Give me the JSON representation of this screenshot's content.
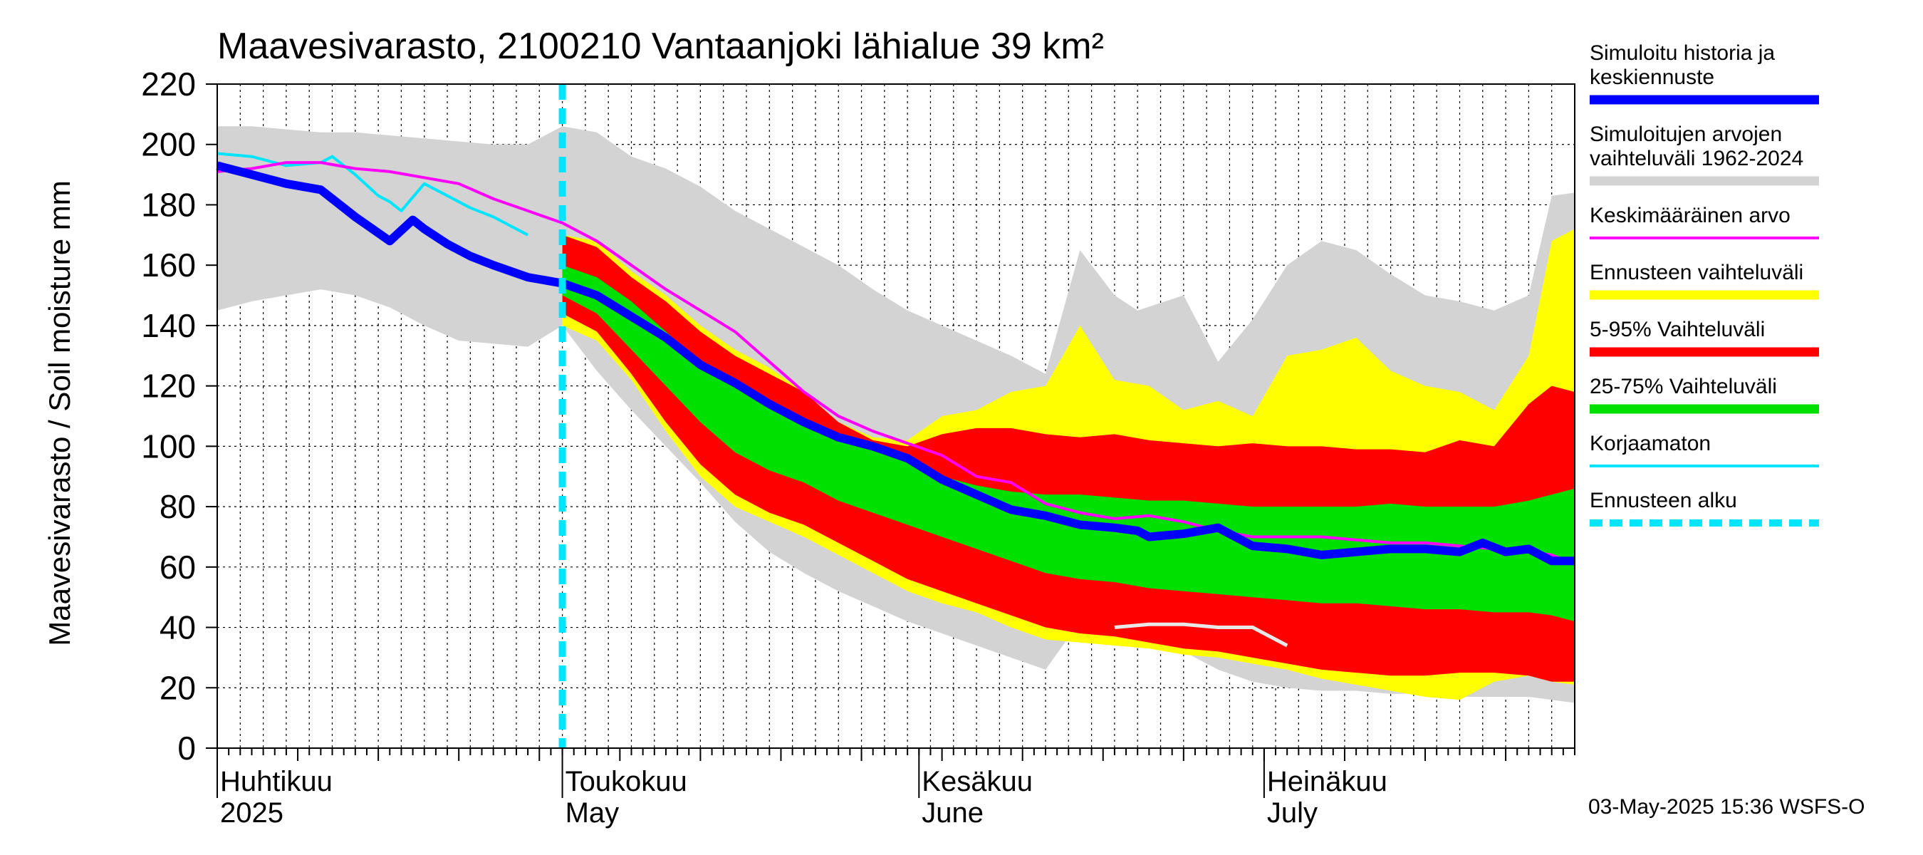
{
  "chart_data": {
    "type": "area",
    "title": "Maavesivarasto, 2100210 Vantaanjoki lähialue 39 km²",
    "ylabel": "Maavesivarasto / Soil moisture   mm",
    "ylim": [
      0,
      220
    ],
    "yticks": [
      0,
      20,
      40,
      60,
      80,
      100,
      120,
      140,
      160,
      180,
      200,
      220
    ],
    "xlim_days": [
      0,
      118
    ],
    "x_unit": "days from 2025-04-01",
    "forecast_start_day": 30,
    "month_labels": [
      {
        "fi": "Huhtikuu",
        "en": "2025",
        "day": 0
      },
      {
        "fi": "Toukokuu",
        "en": "May",
        "day": 30
      },
      {
        "fi": "Kesäkuu",
        "en": "June",
        "day": 61
      },
      {
        "fi": "Heinäkuu",
        "en": "July",
        "day": 91
      }
    ],
    "timestamp": "03-May-2025 15:36 WSFS-O",
    "legend": [
      {
        "key": "sim",
        "label1": "Simuloitu historia ja",
        "label2": "keskiennuste",
        "color": "#0000ff",
        "style": "thick"
      },
      {
        "key": "range",
        "label1": "Simuloitujen arvojen",
        "label2": "vaihteluväli 1962-2024",
        "color": "#d3d3d3",
        "style": "thick"
      },
      {
        "key": "mean",
        "label1": "Keskimääräinen arvo",
        "label2": "",
        "color": "#ff00ff",
        "style": "thin"
      },
      {
        "key": "fcrange",
        "label1": "Ennusteen vaihteluväli",
        "label2": "",
        "color": "#ffff00",
        "style": "thick"
      },
      {
        "key": "p595",
        "label1": "5-95% Vaihteluväli",
        "label2": "",
        "color": "#ff0000",
        "style": "thick"
      },
      {
        "key": "p2575",
        "label1": "25-75% Vaihteluväli",
        "label2": "",
        "color": "#00e000",
        "style": "thick"
      },
      {
        "key": "uncorr",
        "label1": "Korjaamaton",
        "label2": "",
        "color": "#00e5ff",
        "style": "thin"
      },
      {
        "key": "fcstart",
        "label1": "Ennusteen alku",
        "label2": "",
        "color": "#00e5ff",
        "style": "dashed"
      }
    ],
    "series": {
      "hist_range": {
        "x": [
          0,
          3,
          6,
          9,
          12,
          15,
          18,
          21,
          24,
          27,
          30,
          33,
          36,
          39,
          42,
          45,
          48,
          51,
          54,
          57,
          60,
          63,
          66,
          69,
          72,
          75,
          76,
          78,
          80,
          84,
          87,
          90,
          93,
          96,
          99,
          102,
          105,
          108,
          111,
          114,
          116,
          118
        ],
        "upper": [
          206,
          206,
          205,
          204,
          204,
          203,
          202,
          201,
          200,
          200,
          206,
          204,
          196,
          192,
          186,
          178,
          172,
          166,
          160,
          152,
          145,
          140,
          135,
          130,
          124,
          165,
          160,
          150,
          145,
          150,
          128,
          142,
          160,
          168,
          165,
          157,
          150,
          148,
          145,
          150,
          183,
          184
        ],
        "lower": [
          145,
          148,
          150,
          152,
          150,
          146,
          140,
          135,
          134,
          133,
          140,
          125,
          112,
          100,
          88,
          75,
          65,
          58,
          52,
          47,
          42,
          38,
          34,
          30,
          26,
          42,
          40,
          38,
          36,
          32,
          26,
          22,
          20,
          19,
          19,
          18,
          18,
          17,
          17,
          17,
          16,
          15
        ]
      },
      "fc_range": {
        "x": [
          30,
          33,
          36,
          39,
          42,
          45,
          48,
          51,
          54,
          57,
          60,
          63,
          66,
          69,
          72,
          75,
          78,
          81,
          84,
          87,
          90,
          93,
          96,
          99,
          102,
          105,
          108,
          111,
          114,
          116,
          118
        ],
        "upper": [
          170,
          168,
          158,
          150,
          140,
          132,
          126,
          118,
          108,
          103,
          102,
          110,
          112,
          118,
          120,
          140,
          122,
          120,
          112,
          115,
          110,
          130,
          132,
          136,
          125,
          120,
          118,
          112,
          130,
          168,
          172
        ],
        "lower": [
          140,
          135,
          122,
          105,
          90,
          80,
          75,
          70,
          64,
          58,
          52,
          48,
          45,
          40,
          36,
          35,
          34,
          33,
          31,
          30,
          28,
          26,
          23,
          21,
          19,
          17,
          16,
          22,
          24,
          22,
          21
        ]
      },
      "p595": {
        "x": [
          30,
          33,
          36,
          39,
          42,
          45,
          48,
          51,
          54,
          57,
          60,
          63,
          66,
          69,
          72,
          75,
          78,
          81,
          84,
          87,
          90,
          93,
          96,
          99,
          102,
          105,
          108,
          111,
          114,
          116,
          118
        ],
        "upper": [
          170,
          166,
          156,
          148,
          138,
          130,
          124,
          118,
          108,
          102,
          100,
          104,
          106,
          106,
          104,
          103,
          104,
          102,
          101,
          100,
          101,
          100,
          100,
          99,
          99,
          98,
          102,
          100,
          114,
          120,
          118
        ],
        "lower": [
          144,
          138,
          124,
          108,
          94,
          84,
          78,
          74,
          68,
          62,
          56,
          52,
          48,
          44,
          40,
          38,
          37,
          35,
          33,
          32,
          30,
          28,
          26,
          25,
          24,
          24,
          25,
          25,
          24,
          22,
          22
        ]
      },
      "p2575": {
        "x": [
          30,
          33,
          36,
          39,
          42,
          45,
          48,
          51,
          54,
          57,
          60,
          63,
          66,
          69,
          72,
          75,
          78,
          81,
          84,
          87,
          90,
          93,
          96,
          99,
          102,
          105,
          108,
          111,
          114,
          116,
          118
        ],
        "upper": [
          160,
          156,
          148,
          138,
          128,
          120,
          113,
          108,
          104,
          100,
          95,
          90,
          87,
          85,
          84,
          84,
          83,
          82,
          82,
          81,
          80,
          80,
          80,
          80,
          81,
          80,
          80,
          80,
          82,
          84,
          86
        ],
        "lower": [
          150,
          144,
          132,
          120,
          108,
          98,
          92,
          88,
          82,
          78,
          74,
          70,
          66,
          62,
          58,
          56,
          55,
          53,
          52,
          51,
          50,
          49,
          48,
          48,
          47,
          46,
          46,
          45,
          45,
          44,
          42
        ]
      },
      "sim": {
        "x": [
          0,
          3,
          6,
          9,
          12,
          15,
          17,
          18,
          20,
          22,
          24,
          27,
          30,
          33,
          36,
          39,
          42,
          45,
          48,
          51,
          54,
          57,
          60,
          63,
          66,
          69,
          72,
          75,
          78,
          80,
          81,
          84,
          87,
          90,
          93,
          96,
          99,
          102,
          105,
          108,
          110,
          112,
          114,
          116,
          118
        ],
        "y": [
          193,
          190,
          187,
          185,
          176,
          168,
          175,
          172,
          167,
          163,
          160,
          156,
          154,
          150,
          143,
          136,
          127,
          121,
          114,
          108,
          103,
          100,
          96,
          89,
          84,
          79,
          77,
          74,
          73,
          72,
          70,
          71,
          73,
          67,
          66,
          64,
          65,
          66,
          66,
          65,
          68,
          65,
          66,
          62,
          62
        ]
      },
      "mean": {
        "x": [
          0,
          3,
          6,
          9,
          12,
          15,
          18,
          21,
          24,
          27,
          30,
          33,
          36,
          39,
          42,
          45,
          48,
          51,
          54,
          57,
          60,
          63,
          66,
          69,
          72,
          75,
          78,
          81,
          84,
          87,
          90,
          93,
          96,
          99,
          102,
          105,
          108,
          111,
          114,
          116,
          118
        ],
        "y": [
          191,
          192,
          194,
          194,
          192,
          191,
          189,
          187,
          182,
          178,
          174,
          168,
          160,
          152,
          145,
          138,
          128,
          118,
          110,
          105,
          101,
          97,
          90,
          88,
          81,
          78,
          76,
          77,
          75,
          72,
          70,
          70,
          70,
          69,
          68,
          68,
          67,
          66,
          65,
          64,
          61
        ]
      },
      "uncorr": {
        "x": [
          0,
          3,
          6,
          9,
          10,
          12,
          14,
          15,
          16,
          18,
          20,
          22,
          24,
          27
        ],
        "y": [
          197,
          196,
          193,
          194,
          196,
          190,
          183,
          181,
          178,
          187,
          183,
          179,
          176,
          170
        ]
      },
      "white": {
        "x": [
          78,
          81,
          84,
          87,
          90,
          93
        ],
        "y": [
          40,
          41,
          41,
          40,
          40,
          34
        ]
      }
    }
  }
}
